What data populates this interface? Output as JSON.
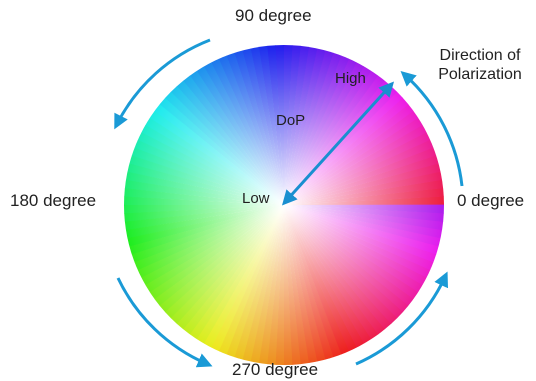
{
  "labels": {
    "deg90": "90 degree",
    "deg180": "180 degree",
    "deg0": "0 degree",
    "deg270": "270  degree"
  },
  "direction_title": {
    "line1": "Direction of",
    "line2": "Polarization"
  },
  "inner": {
    "dop": "DoP",
    "high": "High",
    "low": "Low"
  },
  "colors": {
    "arrow": "#1a9ad6",
    "dop_arrow": "#1a8fd0",
    "text": "#222222",
    "hue_0": "#e8193c",
    "hue_90": "#0f9d58",
    "hue_180": "#b01e8f",
    "hue_270": "#f7e21b"
  },
  "icons": {
    "rotation_arrows": "curved-arrow-icon",
    "dop_arrow": "double-arrow-icon"
  }
}
